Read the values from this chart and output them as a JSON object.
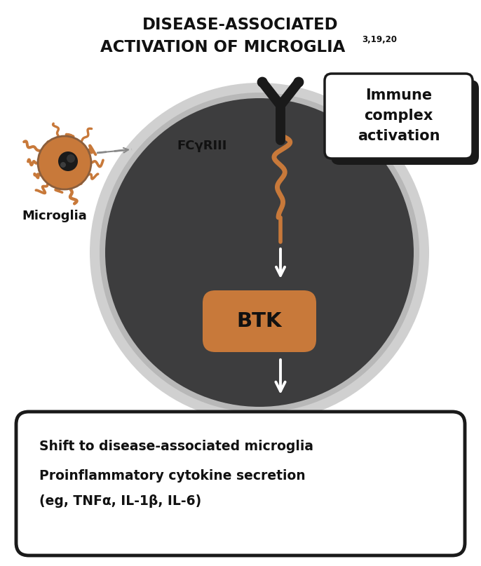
{
  "title_line1": "DISEASE-ASSOCIATED",
  "title_line2": "ACTIVATION OF MICROGLIA",
  "title_superscript": "3,19,20",
  "bg_color": "#ffffff",
  "cell_dark_color": "#3d3d3e",
  "cell_membrane_color": "#b8b8b8",
  "cell_membrane_outer": "#d0d0d0",
  "btk_color": "#c8793a",
  "receptor_color": "#c8793a",
  "microglia_body_color": "#c8793a",
  "microglia_tentacle_color": "#c8793a",
  "microglia_border_color": "#8B5E3C",
  "antibody_color": "#1a1a1a",
  "dark_box_color": "#1a1a1a",
  "arrow_color": "#ffffff",
  "text_dark": "#111111",
  "btk_label": "BTK",
  "fcyriii_label": "FCγRIII",
  "microglia_label": "Microglia",
  "immune_line1": "Immune",
  "immune_line2": "complex",
  "immune_line3": "activation",
  "bottom_text1": "Shift to disease-associated microglia",
  "bottom_text2": "Proinflammatory cytokine secretion",
  "bottom_text3": "(eg, TNFα, IL-1β, IL-6)"
}
